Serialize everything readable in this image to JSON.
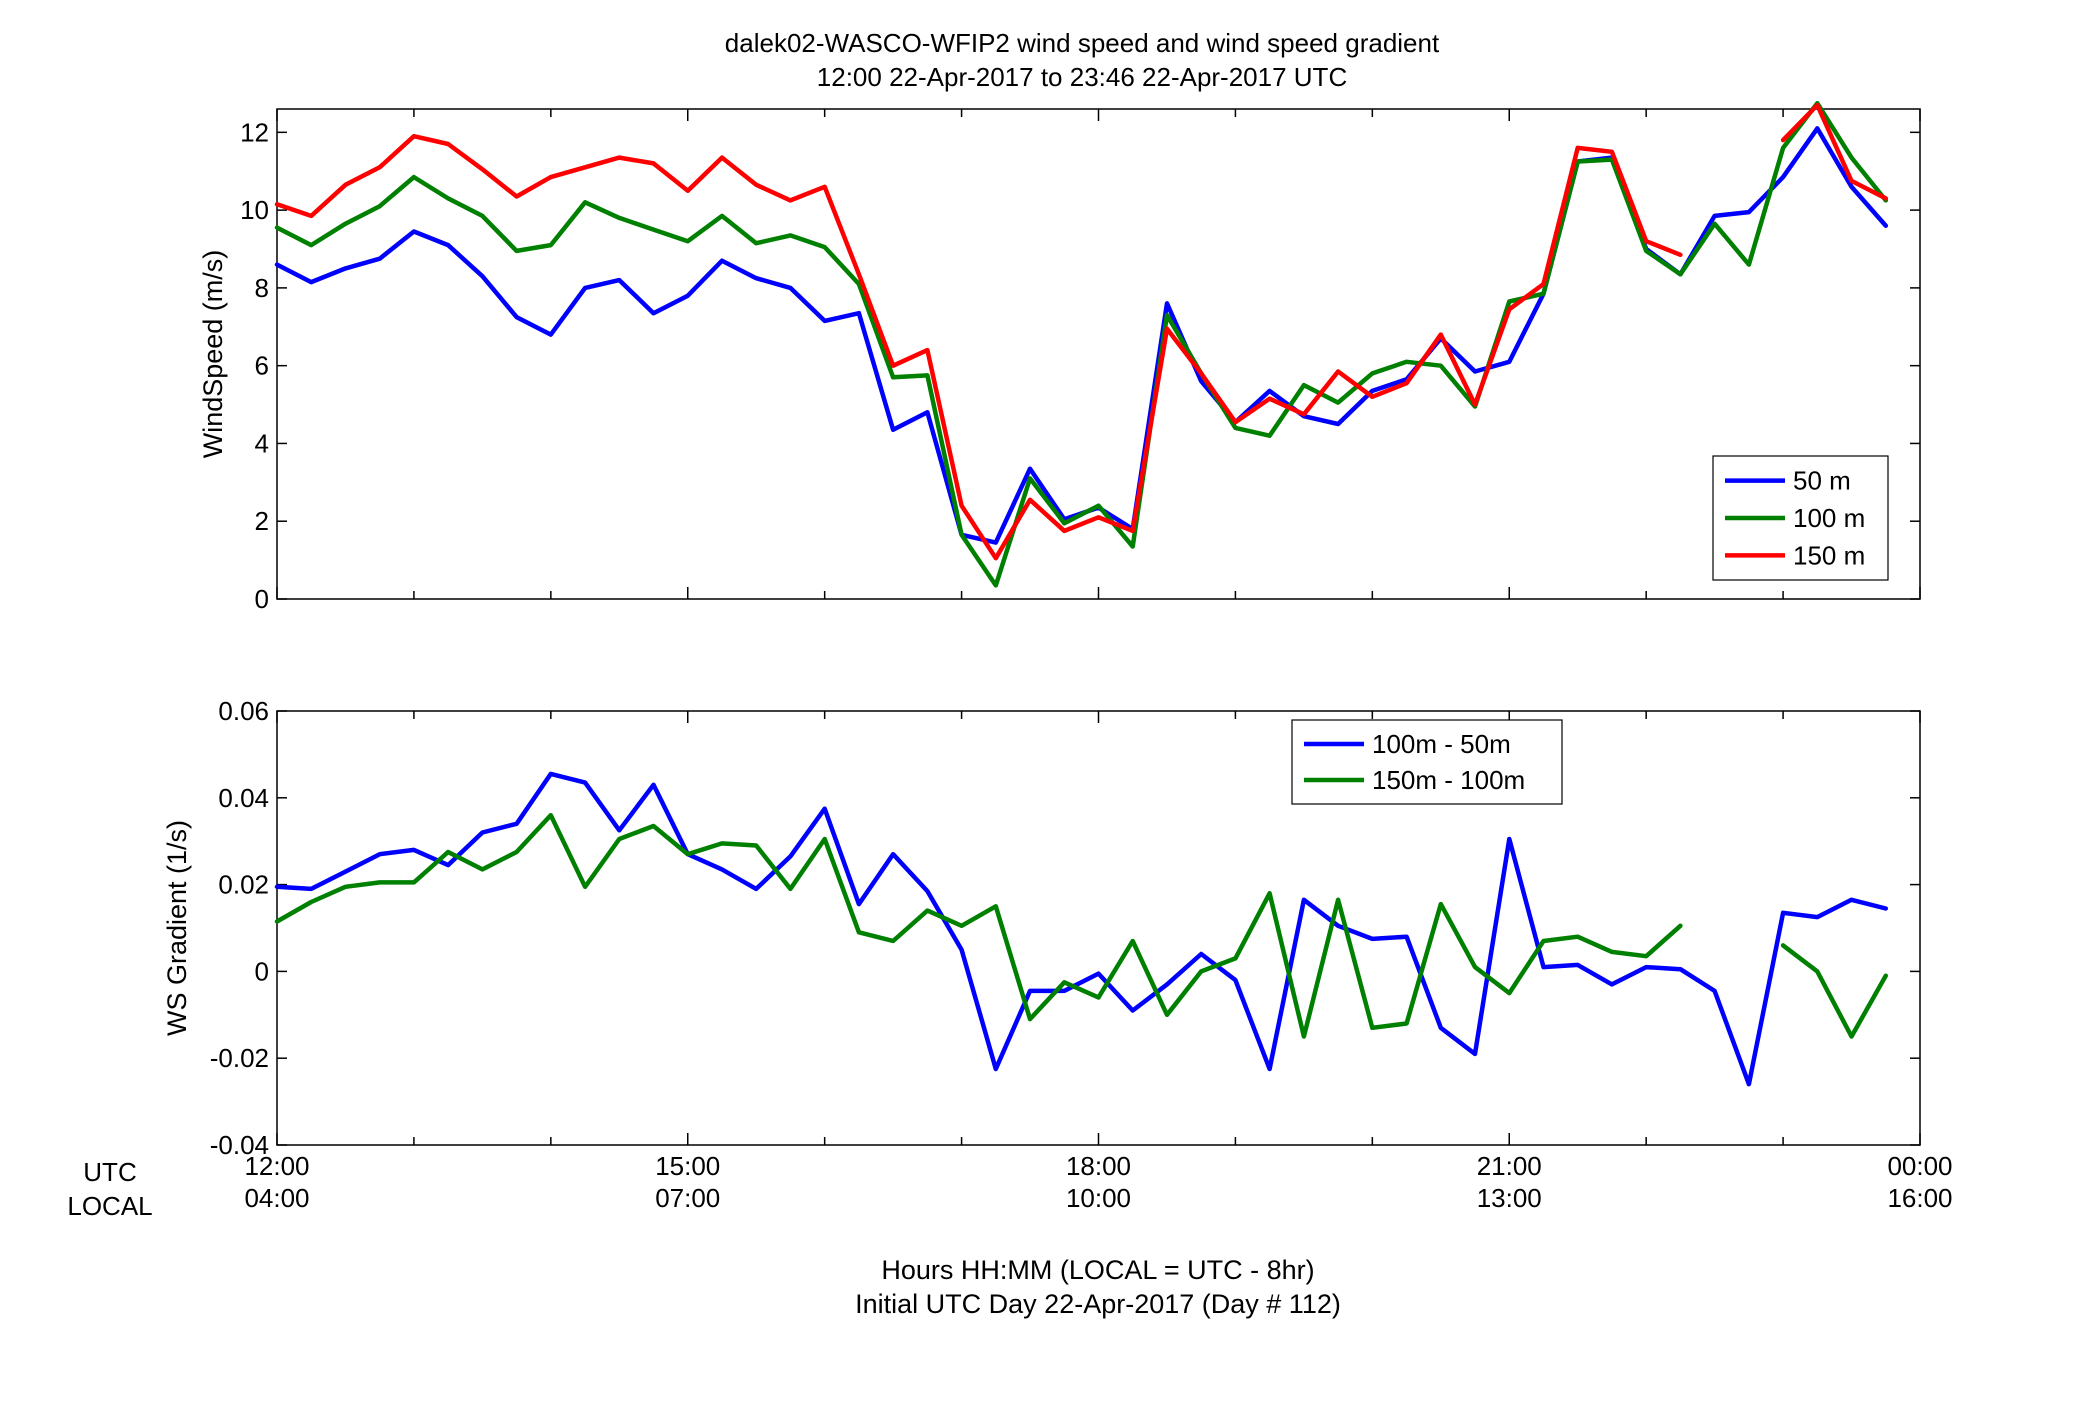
{
  "title_lines": [
    "dalek02-WASCO-WFIP2  wind speed and wind speed gradient",
    "12:00 22-Apr-2017 to 23:46 22-Apr-2017  UTC"
  ],
  "xaxis": {
    "row_labels": [
      "UTC",
      "LOCAL"
    ],
    "utc_ticks": [
      "12:00",
      "15:00",
      "18:00",
      "21:00",
      "00:00"
    ],
    "local_ticks": [
      "04:00",
      "07:00",
      "10:00",
      "13:00",
      "16:00"
    ],
    "label_lines": [
      "Hours HH:MM  (LOCAL = UTC - 8hr)",
      "Initial UTC Day 22-Apr-2017 (Day # 112)"
    ]
  },
  "colors": {
    "blue": "#0000ff",
    "green": "#008000",
    "red": "#ff0000"
  },
  "chart_data": [
    {
      "type": "line",
      "title": "dalek02-WASCO-WFIP2  wind speed and wind speed gradient",
      "xlabel": "Hours HH:MM  (LOCAL = UTC - 8hr)",
      "ylabel": "WindSpeed (m/s)",
      "xlim": [
        12,
        24
      ],
      "ylim": [
        0,
        12.6
      ],
      "yticks": [
        0,
        2,
        4,
        6,
        8,
        10,
        12
      ],
      "ytick_labels": [
        "0",
        "2",
        "4",
        "6",
        "8",
        "10",
        "12"
      ],
      "legend_position": "lower-right",
      "x_start_hour": 12.0,
      "x_step_hour": 0.25,
      "series": [
        {
          "name": "50 m",
          "color": "#0000ff",
          "values": [
            8.6,
            8.15,
            8.5,
            8.75,
            9.45,
            9.1,
            8.3,
            7.25,
            6.8,
            8.0,
            8.2,
            7.35,
            7.8,
            8.7,
            8.25,
            8.0,
            7.15,
            7.35,
            4.35,
            4.8,
            1.65,
            1.45,
            3.35,
            2.05,
            2.35,
            1.8,
            7.6,
            5.6,
            4.55,
            5.35,
            4.7,
            4.5,
            5.35,
            5.65,
            6.7,
            5.85,
            6.1,
            7.85,
            11.25,
            11.35,
            9.0,
            8.35,
            9.85,
            9.95,
            10.85,
            12.1,
            10.6,
            9.6
          ]
        },
        {
          "name": "100 m",
          "color": "#008000",
          "values": [
            9.55,
            9.1,
            9.65,
            10.1,
            10.85,
            10.3,
            9.85,
            8.95,
            9.1,
            10.2,
            9.8,
            9.5,
            9.2,
            9.85,
            9.15,
            9.35,
            9.05,
            8.1,
            5.7,
            5.75,
            1.65,
            0.35,
            3.1,
            1.95,
            2.4,
            1.35,
            7.3,
            5.8,
            4.4,
            4.2,
            5.5,
            5.05,
            5.8,
            6.1,
            6.0,
            4.95,
            7.65,
            7.85,
            11.25,
            11.3,
            8.95,
            8.35,
            9.65,
            8.6,
            11.6,
            12.75,
            11.35,
            10.25
          ]
        },
        {
          "name": "150 m",
          "color": "#ff0000",
          "values": [
            10.15,
            9.85,
            10.65,
            11.1,
            11.9,
            11.7,
            11.05,
            10.35,
            10.85,
            11.1,
            11.35,
            11.2,
            10.5,
            11.35,
            10.65,
            10.25,
            10.6,
            8.35,
            6.0,
            6.4,
            2.4,
            1.05,
            2.55,
            1.75,
            2.1,
            1.75,
            6.95,
            5.8,
            4.55,
            5.15,
            4.75,
            5.85,
            5.2,
            5.55,
            6.8,
            5.0,
            7.45,
            8.1,
            11.6,
            11.5,
            9.2,
            8.85,
            null,
            null,
            11.8,
            12.7,
            10.75,
            10.3
          ]
        }
      ]
    },
    {
      "type": "line",
      "ylabel": "WS Gradient (1/s)",
      "xlabel": "Hours HH:MM  (LOCAL = UTC - 8hr)",
      "xlim": [
        12,
        24
      ],
      "ylim": [
        -0.04,
        0.06
      ],
      "yticks": [
        -0.04,
        -0.02,
        0,
        0.02,
        0.04,
        0.06
      ],
      "ytick_labels": [
        "-0.04",
        "-0.02",
        "0",
        "0.02",
        "0.04",
        "0.06"
      ],
      "legend_position": "top-center-right",
      "x_start_hour": 12.0,
      "x_step_hour": 0.25,
      "series": [
        {
          "name": "100m - 50m",
          "color": "#0000ff",
          "values": [
            0.0195,
            0.019,
            0.023,
            0.027,
            0.028,
            0.0245,
            0.032,
            0.034,
            0.0455,
            0.0435,
            0.0325,
            0.043,
            0.027,
            0.0235,
            0.019,
            0.0265,
            0.0375,
            0.0155,
            0.027,
            0.0185,
            0.005,
            -0.0225,
            -0.0045,
            -0.0045,
            -0.0005,
            -0.009,
            -0.003,
            0.004,
            -0.002,
            -0.0225,
            0.0165,
            0.0105,
            0.0075,
            0.008,
            -0.013,
            -0.019,
            0.0305,
            0.001,
            0.0015,
            -0.003,
            0.001,
            0.0005,
            -0.0045,
            -0.026,
            0.0135,
            0.0125,
            0.0165,
            0.0145
          ]
        },
        {
          "name": "150m - 100m",
          "color": "#008000",
          "values": [
            0.0115,
            0.016,
            0.0195,
            0.0205,
            0.0205,
            0.0275,
            0.0235,
            0.0275,
            0.036,
            0.0195,
            0.0305,
            0.0335,
            0.027,
            0.0295,
            0.029,
            0.019,
            0.0305,
            0.009,
            0.007,
            0.014,
            0.0105,
            0.015,
            -0.011,
            -0.0025,
            -0.006,
            0.007,
            -0.01,
            0.0,
            0.003,
            0.018,
            -0.015,
            0.0165,
            -0.013,
            -0.012,
            0.0155,
            0.001,
            -0.005,
            0.007,
            0.008,
            0.0045,
            0.0035,
            0.0105,
            null,
            null,
            0.006,
            0.0,
            -0.015,
            -0.001
          ]
        }
      ]
    }
  ]
}
